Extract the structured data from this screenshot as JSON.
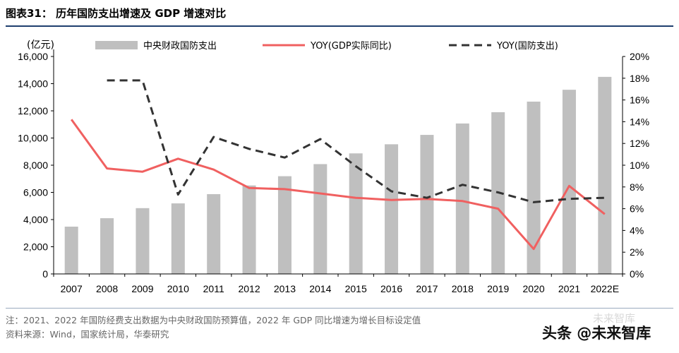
{
  "figure": {
    "title": "图表31： 历年国防支出增速及 GDP 增速对比",
    "footnote": "注：2021、2022 年国防经费支出数据为中央财政国防预算值，2022 年 GDP 同比增速为增长目标设定值",
    "source": "资料来源：Wind，国家统计局，华泰研究",
    "watermark": "未来智库",
    "brand": "头条 @未来智库"
  },
  "chart_data": {
    "type": "bar",
    "unit_label": "(亿元)",
    "categories": [
      "2007",
      "2008",
      "2009",
      "2010",
      "2011",
      "2012",
      "2013",
      "2014",
      "2015",
      "2016",
      "2017",
      "2018",
      "2019",
      "2020",
      "2021",
      "2022E"
    ],
    "ylim_left": [
      0,
      16000
    ],
    "yticks_left": [
      "0",
      "2,000",
      "4,000",
      "6,000",
      "8,000",
      "10,000",
      "12,000",
      "14,000",
      "16,000"
    ],
    "ylim_right": [
      0,
      20
    ],
    "yticks_right": [
      "0%",
      "2%",
      "4%",
      "6%",
      "8%",
      "10%",
      "12%",
      "14%",
      "16%",
      "18%",
      "20%"
    ],
    "series": [
      {
        "name": "中央财政国防支出",
        "kind": "bar",
        "axis": "left",
        "color": "#bfbfbf",
        "values": [
          3480,
          4100,
          4840,
          5190,
          5870,
          6510,
          7190,
          8080,
          8870,
          9540,
          10230,
          11070,
          11900,
          12680,
          13550,
          14500
        ]
      },
      {
        "name": "YOY(GDP实际同比)",
        "kind": "line",
        "axis": "right",
        "color": "#f06060",
        "values": [
          14.2,
          9.7,
          9.4,
          10.6,
          9.6,
          7.9,
          7.8,
          7.4,
          7.0,
          6.8,
          6.9,
          6.7,
          6.0,
          2.3,
          8.1,
          5.5
        ]
      },
      {
        "name": "YOY(国防支出)",
        "kind": "dashed-line",
        "axis": "right",
        "color": "#333333",
        "values": [
          null,
          17.8,
          17.8,
          7.3,
          12.6,
          11.5,
          10.7,
          12.4,
          9.9,
          7.6,
          7.0,
          8.2,
          7.5,
          6.6,
          6.9,
          7.0
        ]
      }
    ]
  }
}
